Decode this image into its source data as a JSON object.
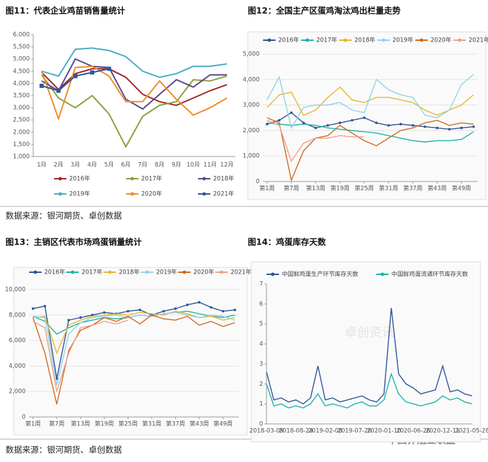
{
  "sources": [
    "数据来源：银河期货、卓创数据",
    "数据来源：银河期货、卓创数据"
  ],
  "watermark": "中国养殖业联盟",
  "chart_data": [
    {
      "type": "line",
      "title": "图11：代表企业鸡苗销售量统计",
      "legend": "bottom",
      "grid": false,
      "categories": [
        "1月",
        "2月",
        "3月",
        "4月",
        "5月",
        "6月",
        "7月",
        "8月",
        "9月",
        "10月",
        "11月",
        "12月"
      ],
      "ylim": [
        1000,
        6000
      ],
      "yticks": [
        {
          "value": 1000,
          "label": "1,000"
        },
        {
          "value": 1500,
          "label": "1,500"
        },
        {
          "value": 2000,
          "label": "2,000"
        },
        {
          "value": 2500,
          "label": "2,500"
        },
        {
          "value": 3000,
          "label": "3,000"
        },
        {
          "value": 3500,
          "label": "3,500"
        },
        {
          "value": 4000,
          "label": "4,000"
        },
        {
          "value": 4500,
          "label": "4,500"
        },
        {
          "value": 5000,
          "label": "5,000"
        },
        {
          "value": 5500,
          "label": "5,500"
        },
        {
          "value": 6000,
          "label": "6,000"
        }
      ],
      "series": [
        {
          "name": "2016年",
          "color": "#a0282a",
          "values": [
            4450,
            3750,
            4400,
            4600,
            4600,
            4250,
            3550,
            3250,
            3100,
            3400,
            3700,
            3950
          ]
        },
        {
          "name": "2017年",
          "color": "#8aa03c",
          "values": [
            4350,
            3400,
            3000,
            3500,
            2750,
            1400,
            2650,
            3100,
            3250,
            4150,
            4100,
            4300
          ]
        },
        {
          "name": "2018年",
          "color": "#5a4a8c",
          "values": [
            4100,
            3700,
            5000,
            4700,
            4650,
            3350,
            2950,
            3550,
            4150,
            3850,
            4350,
            4350
          ]
        },
        {
          "name": "2019年",
          "color": "#4bacc6",
          "values": [
            4500,
            4300,
            5400,
            5450,
            5350,
            5100,
            4500,
            4250,
            4400,
            4700,
            4700,
            4800
          ]
        },
        {
          "name": "2020年",
          "color": "#f08c28",
          "values": [
            4500,
            2550,
            4650,
            4700,
            4300,
            3250,
            3250,
            4100,
            3350,
            2700,
            3000,
            3400
          ]
        },
        {
          "name": "2021年",
          "color": "#2f5597",
          "marker": "square",
          "values": [
            3900,
            3700,
            4300,
            4450,
            4600,
            null,
            null,
            null,
            null,
            null,
            null,
            null
          ]
        }
      ]
    },
    {
      "type": "line",
      "title": "图12：全国主产区蛋鸡淘汰鸡出栏量走势",
      "legend": "top",
      "grid": true,
      "frame": true,
      "x": [
        1,
        4,
        7,
        10,
        13,
        16,
        19,
        22,
        25,
        28,
        31,
        34,
        37,
        40,
        43,
        46,
        49,
        52
      ],
      "xlim": [
        0,
        53
      ],
      "xticks": [
        {
          "value": 1,
          "label": "第1周"
        },
        {
          "value": 7,
          "label": "第7周"
        },
        {
          "value": 13,
          "label": "第13周"
        },
        {
          "value": 19,
          "label": "第19周"
        },
        {
          "value": 25,
          "label": "第25周"
        },
        {
          "value": 31,
          "label": "第31周"
        },
        {
          "value": 37,
          "label": "第37周"
        },
        {
          "value": 43,
          "label": "第43周"
        },
        {
          "value": 49,
          "label": "第49周"
        }
      ],
      "ylim": [
        0,
        5000
      ],
      "yticks": [
        0,
        {
          "value": 1000,
          "label": "1,000"
        },
        {
          "value": 2000,
          "label": "2,000"
        },
        {
          "value": 3000,
          "label": "3,000"
        },
        {
          "value": 4000,
          "label": "4,000"
        },
        {
          "value": 5000,
          "label": "5,000"
        }
      ],
      "series": [
        {
          "name": "2016年",
          "color": "#2f5597",
          "marker": "circle",
          "values": [
            2250,
            2400,
            2700,
            2300,
            2100,
            2200,
            2300,
            2400,
            2500,
            2300,
            2200,
            2250,
            2200,
            2150,
            2100,
            2050,
            2100,
            2150
          ]
        },
        {
          "name": "2017年",
          "color": "#1fb3a6",
          "values": [
            2300,
            2250,
            2200,
            2250,
            2200,
            2100,
            2050,
            2000,
            1950,
            1900,
            1800,
            1700,
            1600,
            1550,
            1600,
            1600,
            1650,
            1950
          ]
        },
        {
          "name": "2018年",
          "color": "#e8b630",
          "values": [
            2900,
            3400,
            3500,
            2600,
            2800,
            3300,
            3700,
            3200,
            3100,
            3300,
            3300,
            3200,
            3100,
            2800,
            2600,
            2800,
            3000,
            3400
          ]
        },
        {
          "name": "2019年",
          "color": "#8fd3e8",
          "values": [
            3200,
            4100,
            2100,
            2900,
            3000,
            3000,
            3100,
            2800,
            2700,
            4000,
            3600,
            3400,
            3300,
            2600,
            2500,
            2800,
            3800,
            4200
          ]
        },
        {
          "name": "2020年",
          "color": "#d2691e",
          "values": [
            2500,
            2300,
            50,
            1200,
            1700,
            1800,
            2200,
            1900,
            1600,
            1400,
            1700,
            2000,
            2100,
            2300,
            2400,
            2200,
            2300,
            2250
          ]
        },
        {
          "name": "2021年",
          "color": "#f0a08c",
          "values": [
            2400,
            2200,
            800,
            1500,
            1700,
            1700,
            1800,
            1750,
            1750,
            null,
            null,
            null,
            null,
            null,
            null,
            null,
            null,
            null
          ]
        }
      ]
    },
    {
      "type": "line",
      "title": "图13：主销区代表市场鸡蛋销量统计",
      "legend": "top",
      "grid": true,
      "frame": true,
      "x": [
        1,
        4,
        7,
        10,
        13,
        16,
        19,
        22,
        25,
        28,
        31,
        34,
        37,
        40,
        43,
        46,
        49,
        52
      ],
      "xlim": [
        0,
        53
      ],
      "xticks": [
        {
          "value": 1,
          "label": "第1周"
        },
        {
          "value": 7,
          "label": "第7周"
        },
        {
          "value": 13,
          "label": "第13周"
        },
        {
          "value": 19,
          "label": "第19周"
        },
        {
          "value": 25,
          "label": "第25周"
        },
        {
          "value": 31,
          "label": "第31周"
        },
        {
          "value": 37,
          "label": "第37周"
        },
        {
          "value": 43,
          "label": "第43周"
        },
        {
          "value": 49,
          "label": "第49周"
        }
      ],
      "ylim": [
        0,
        10000
      ],
      "yticks": [
        0,
        {
          "value": 2000,
          "label": "2,000"
        },
        {
          "value": 4000,
          "label": "4,000"
        },
        {
          "value": 6000,
          "label": "6,000"
        },
        {
          "value": 8000,
          "label": "8,000"
        },
        {
          "value": 10000,
          "label": "10,000"
        }
      ],
      "series": [
        {
          "name": "2016年",
          "color": "#2f5597",
          "marker": "circle",
          "values": [
            8500,
            8700,
            3000,
            7600,
            7800,
            8000,
            8200,
            8100,
            8300,
            8400,
            8000,
            8300,
            8500,
            8800,
            9000,
            8600,
            8300,
            8400
          ]
        },
        {
          "name": "2017年",
          "color": "#1fb3a6",
          "values": [
            7900,
            7500,
            6500,
            7000,
            7400,
            7600,
            7800,
            7700,
            7800,
            8000,
            7900,
            8100,
            8200,
            8300,
            8100,
            7900,
            7800,
            8000
          ]
        },
        {
          "name": "2018年",
          "color": "#e8b630",
          "values": [
            7800,
            7900,
            5000,
            7200,
            7600,
            7900,
            8000,
            8100,
            8000,
            8200,
            8100,
            8000,
            8300,
            8100,
            7800,
            7900,
            7600,
            7800
          ]
        },
        {
          "name": "2019年",
          "color": "#8fd3e8",
          "values": [
            7900,
            7800,
            2500,
            6500,
            7400,
            7800,
            7900,
            8000,
            7800,
            8000,
            7900,
            8100,
            8200,
            8000,
            7800,
            8000,
            7900,
            7600
          ]
        },
        {
          "name": "2020年",
          "color": "#d2691e",
          "values": [
            7800,
            5000,
            1000,
            5200,
            6800,
            7200,
            7800,
            7500,
            7900,
            7300,
            8000,
            7700,
            7600,
            7900,
            7200,
            7500,
            7100,
            7400
          ]
        },
        {
          "name": "2021年",
          "color": "#f0a08c",
          "values": [
            7500,
            7000,
            2000,
            5000,
            7000,
            7200,
            7500,
            7300,
            7600,
            null,
            null,
            null,
            null,
            null,
            null,
            null,
            null,
            null
          ]
        }
      ]
    },
    {
      "type": "line",
      "title": "图14：鸡蛋库存天数",
      "legend": "top",
      "grid": false,
      "frame": true,
      "watermark": "卓创资讯",
      "categories": [
        "2018-03-09",
        "2018-04-20",
        "2018-06-01",
        "2018-07-13",
        "2018-08-24",
        "2018-10-05",
        "2018-11-16",
        "2018-12-28",
        "2019-02-08",
        "2019-03-22",
        "2019-05-03",
        "2019-06-14",
        "2019-07-26",
        "2019-09-06",
        "2019-10-18",
        "2019-11-29",
        "2020-01-10",
        "2020-02-21",
        "2020-04-03",
        "2020-05-15",
        "2020-06-26",
        "2020-08-07",
        "2020-09-18",
        "2020-10-30",
        "2020-12-11",
        "2021-01-22",
        "2021-03-05",
        "2021-04-16",
        "2021-05-28"
      ],
      "xticks": [
        "2018-03-09",
        "2018-08-24",
        "2019-02-08",
        "2019-07-26",
        "2020-01-10",
        "2020-06-26",
        "2020-12-11",
        "2021-05-28"
      ],
      "ylim": [
        0,
        7
      ],
      "yticks": [
        0,
        1,
        2,
        3,
        4,
        5,
        6,
        7
      ],
      "series": [
        {
          "name": "中国鲜鸡蛋生产环节库存天数",
          "color": "#2f5597",
          "values": [
            2.6,
            1.2,
            1.3,
            1.1,
            1.2,
            1.0,
            1.3,
            2.9,
            1.2,
            1.3,
            1.1,
            1.2,
            1.3,
            1.4,
            1.2,
            1.1,
            1.5,
            5.8,
            2.5,
            2.0,
            1.8,
            1.5,
            1.6,
            1.7,
            2.9,
            1.6,
            1.7,
            1.5,
            1.4
          ]
        },
        {
          "name": "中国鲜鸡蛋流通环节库存天数",
          "color": "#1fb3a6",
          "values": [
            2.0,
            0.9,
            1.0,
            0.8,
            0.9,
            0.8,
            1.0,
            1.5,
            0.9,
            1.0,
            0.9,
            0.8,
            1.0,
            1.1,
            0.9,
            0.9,
            1.2,
            2.5,
            1.5,
            1.1,
            1.0,
            0.9,
            1.0,
            1.1,
            1.4,
            1.2,
            1.3,
            1.1,
            1.0
          ]
        }
      ]
    }
  ]
}
